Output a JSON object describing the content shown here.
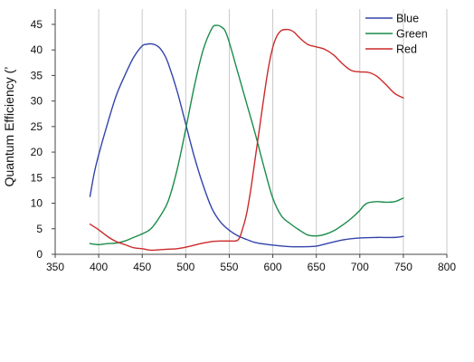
{
  "chart_data": {
    "type": "line",
    "title": "",
    "xlabel": "",
    "ylabel": "Quantum Efficiency (’",
    "xlim": [
      350,
      800
    ],
    "ylim": [
      0,
      48
    ],
    "xticks": [
      350,
      400,
      450,
      500,
      550,
      600,
      650,
      700,
      750,
      800
    ],
    "yticks": [
      0,
      5,
      10,
      15,
      20,
      25,
      30,
      35,
      40,
      45
    ],
    "grid": "vertical",
    "legend_position": "top-right",
    "series": [
      {
        "name": "Blue",
        "color": "#3344aa",
        "x": [
          390,
          395,
          400,
          410,
          420,
          430,
          440,
          450,
          455,
          460,
          465,
          470,
          475,
          480,
          490,
          500,
          510,
          520,
          530,
          540,
          550,
          560,
          570,
          580,
          600,
          620,
          640,
          650,
          660,
          680,
          700,
          720,
          740,
          750
        ],
        "y": [
          11.3,
          16,
          19.5,
          25.5,
          31,
          35,
          38.5,
          40.8,
          41.1,
          41.2,
          41,
          40.4,
          39.2,
          37.3,
          32,
          25.5,
          19,
          13.5,
          9,
          6.3,
          4.7,
          3.6,
          2.9,
          2.3,
          1.8,
          1.5,
          1.5,
          1.6,
          2,
          2.8,
          3.2,
          3.3,
          3.3,
          3.5
        ]
      },
      {
        "name": "Green",
        "color": "#1a8c4a",
        "x": [
          390,
          400,
          410,
          420,
          430,
          440,
          450,
          460,
          470,
          480,
          490,
          500,
          510,
          520,
          530,
          535,
          540,
          545,
          550,
          560,
          570,
          580,
          590,
          600,
          610,
          620,
          630,
          640,
          650,
          660,
          670,
          680,
          690,
          700,
          705,
          710,
          720,
          730,
          740,
          750
        ],
        "y": [
          2.1,
          1.9,
          2.1,
          2.2,
          2.6,
          3.3,
          4,
          5,
          7.3,
          10.5,
          16.5,
          24.5,
          33,
          40,
          44.2,
          44.8,
          44.6,
          43.8,
          41.5,
          35.5,
          29.5,
          23.5,
          17,
          11,
          7.5,
          6,
          4.8,
          3.8,
          3.6,
          3.9,
          4.6,
          5.7,
          7,
          8.6,
          9.6,
          10.1,
          10.3,
          10.2,
          10.3,
          11
        ]
      },
      {
        "name": "Red",
        "color": "#cc2a2a",
        "x": [
          390,
          400,
          410,
          420,
          430,
          440,
          450,
          460,
          470,
          480,
          490,
          500,
          510,
          520,
          530,
          540,
          550,
          560,
          565,
          570,
          575,
          580,
          585,
          590,
          595,
          600,
          605,
          610,
          615,
          620,
          625,
          630,
          640,
          650,
          660,
          670,
          680,
          690,
          700,
          710,
          720,
          730,
          740,
          750
        ],
        "y": [
          5.9,
          4.8,
          3.5,
          2.5,
          1.9,
          1.3,
          1.1,
          0.8,
          0.9,
          1,
          1.1,
          1.4,
          1.8,
          2.2,
          2.5,
          2.6,
          2.6,
          2.8,
          4.8,
          8,
          13,
          19,
          25,
          31,
          36.5,
          40.5,
          42.8,
          43.8,
          44,
          43.9,
          43.4,
          42.5,
          41.1,
          40.6,
          40.1,
          39,
          37.3,
          36,
          35.7,
          35.6,
          34.8,
          33.2,
          31.5,
          30.6
        ]
      }
    ]
  }
}
